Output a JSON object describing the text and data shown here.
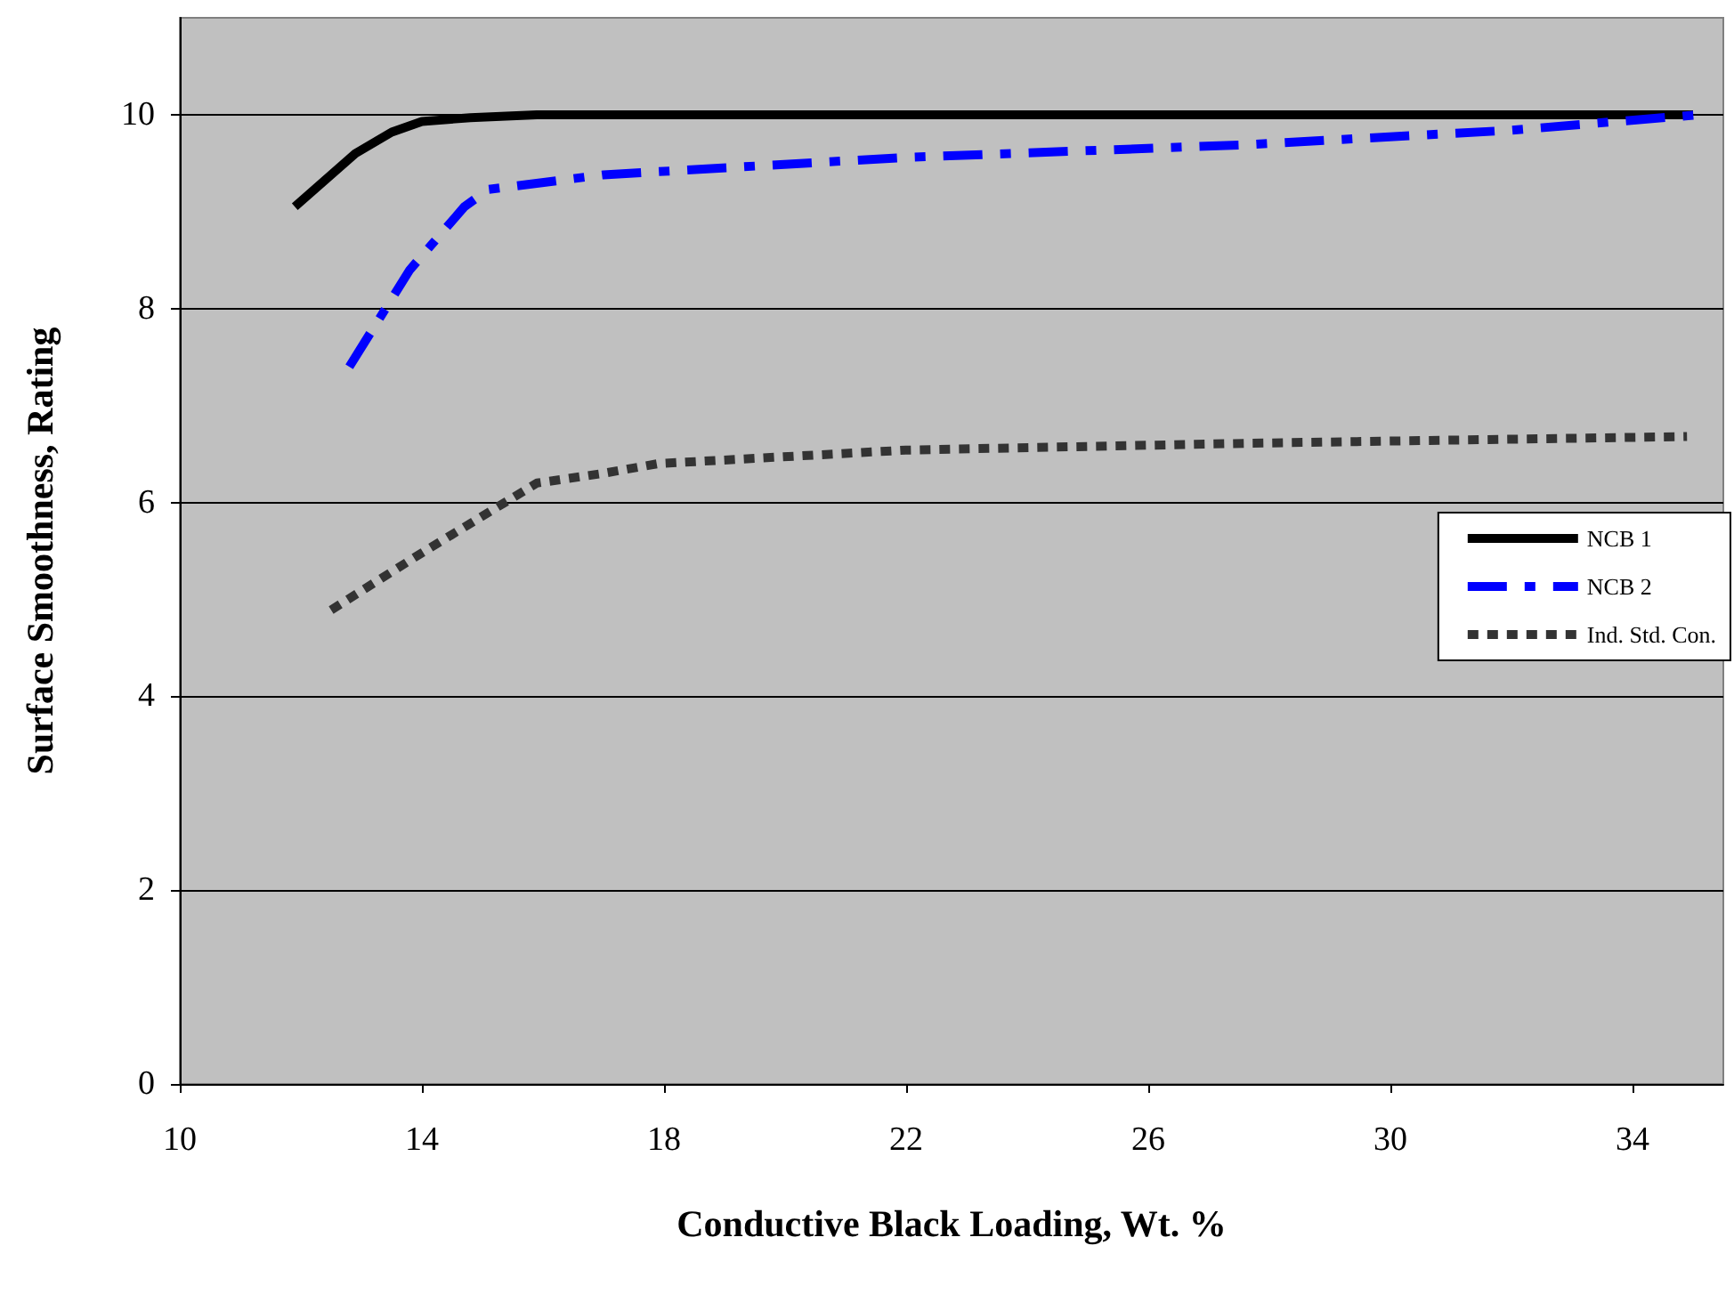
{
  "chart_data": {
    "type": "line",
    "xlabel": "Conductive Black Loading, Wt. %",
    "ylabel": "Surface Smoothness, Rating",
    "xlim": [
      10,
      35.5
    ],
    "xticks": [
      10,
      14,
      18,
      22,
      26,
      30,
      34
    ],
    "ylim": [
      0,
      11
    ],
    "yticks": [
      0,
      2,
      4,
      6,
      8,
      10
    ],
    "grid": "y",
    "legend": "right",
    "marker": "none",
    "series": [
      {
        "name": "NCB 1",
        "color": "#000000",
        "line_style": "solid",
        "x": [
          11.9,
          12.9,
          13.5,
          14,
          14.8,
          15.9,
          18,
          22,
          26,
          30,
          35
        ],
        "values": [
          9.05,
          9.6,
          9.82,
          9.93,
          9.97,
          10,
          10,
          10,
          10,
          10,
          10
        ]
      },
      {
        "name": "NCB 2",
        "color": "#0000ff",
        "line_style": "dashed",
        "x": [
          12.8,
          13.8,
          14.7,
          15.1,
          17,
          22,
          27.6,
          32,
          35.1
        ],
        "values": [
          7.4,
          8.4,
          9.05,
          9.23,
          9.38,
          9.56,
          9.69,
          9.84,
          10
        ]
      },
      {
        "name": "Ind. Std. Con.",
        "color": "#333333",
        "line_style": "dotted",
        "x": [
          12.5,
          14,
          15.9,
          17,
          17.9,
          22,
          27.6,
          34.9
        ],
        "values": [
          4.89,
          5.48,
          6.2,
          6.3,
          6.4,
          6.54,
          6.61,
          6.68
        ]
      }
    ]
  }
}
